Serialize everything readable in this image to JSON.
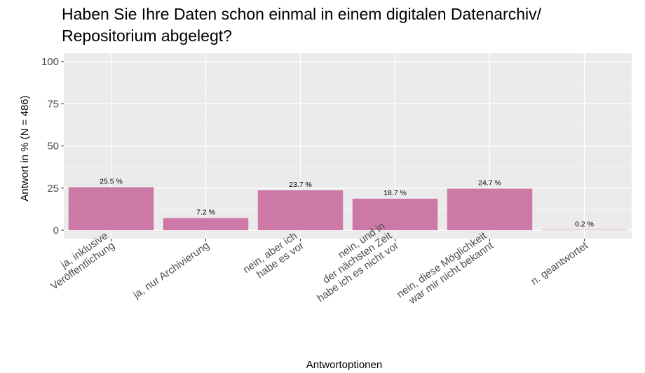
{
  "chart_data": {
    "type": "bar",
    "title_lines": [
      "Haben Sie Ihre Daten schon einmal in einem digitalen Datenarchiv/",
      "Repositorium abgelegt?"
    ],
    "xlabel": "Antwortoptionen",
    "ylabel": "Antwort in % (N = 486)",
    "ylim": [
      0,
      100
    ],
    "yticks": [
      0,
      25,
      50,
      75,
      100
    ],
    "grid": true,
    "categories": [
      [
        "ja, inklusive",
        "Veröffentlichung"
      ],
      [
        "ja, nur Archivierung"
      ],
      [
        "nein, aber ich",
        "habe es vor"
      ],
      [
        "nein, und in",
        "der nächsten Zeit",
        "habe ich es nicht vor"
      ],
      [
        "nein, diese Möglichkeit",
        "war mir nicht bekannt"
      ],
      [
        "n. geantwortet"
      ]
    ],
    "values": [
      25.5,
      7.2,
      23.7,
      18.7,
      24.7,
      0.2
    ],
    "data_labels": [
      "25.5 %",
      "7.2 %",
      "23.7 %",
      "18.7 %",
      "24.7 %",
      "0.2 %"
    ],
    "bar_color": "#cc79a7",
    "panel_color": "#ebebeb",
    "grid_color": "#ffffff"
  }
}
